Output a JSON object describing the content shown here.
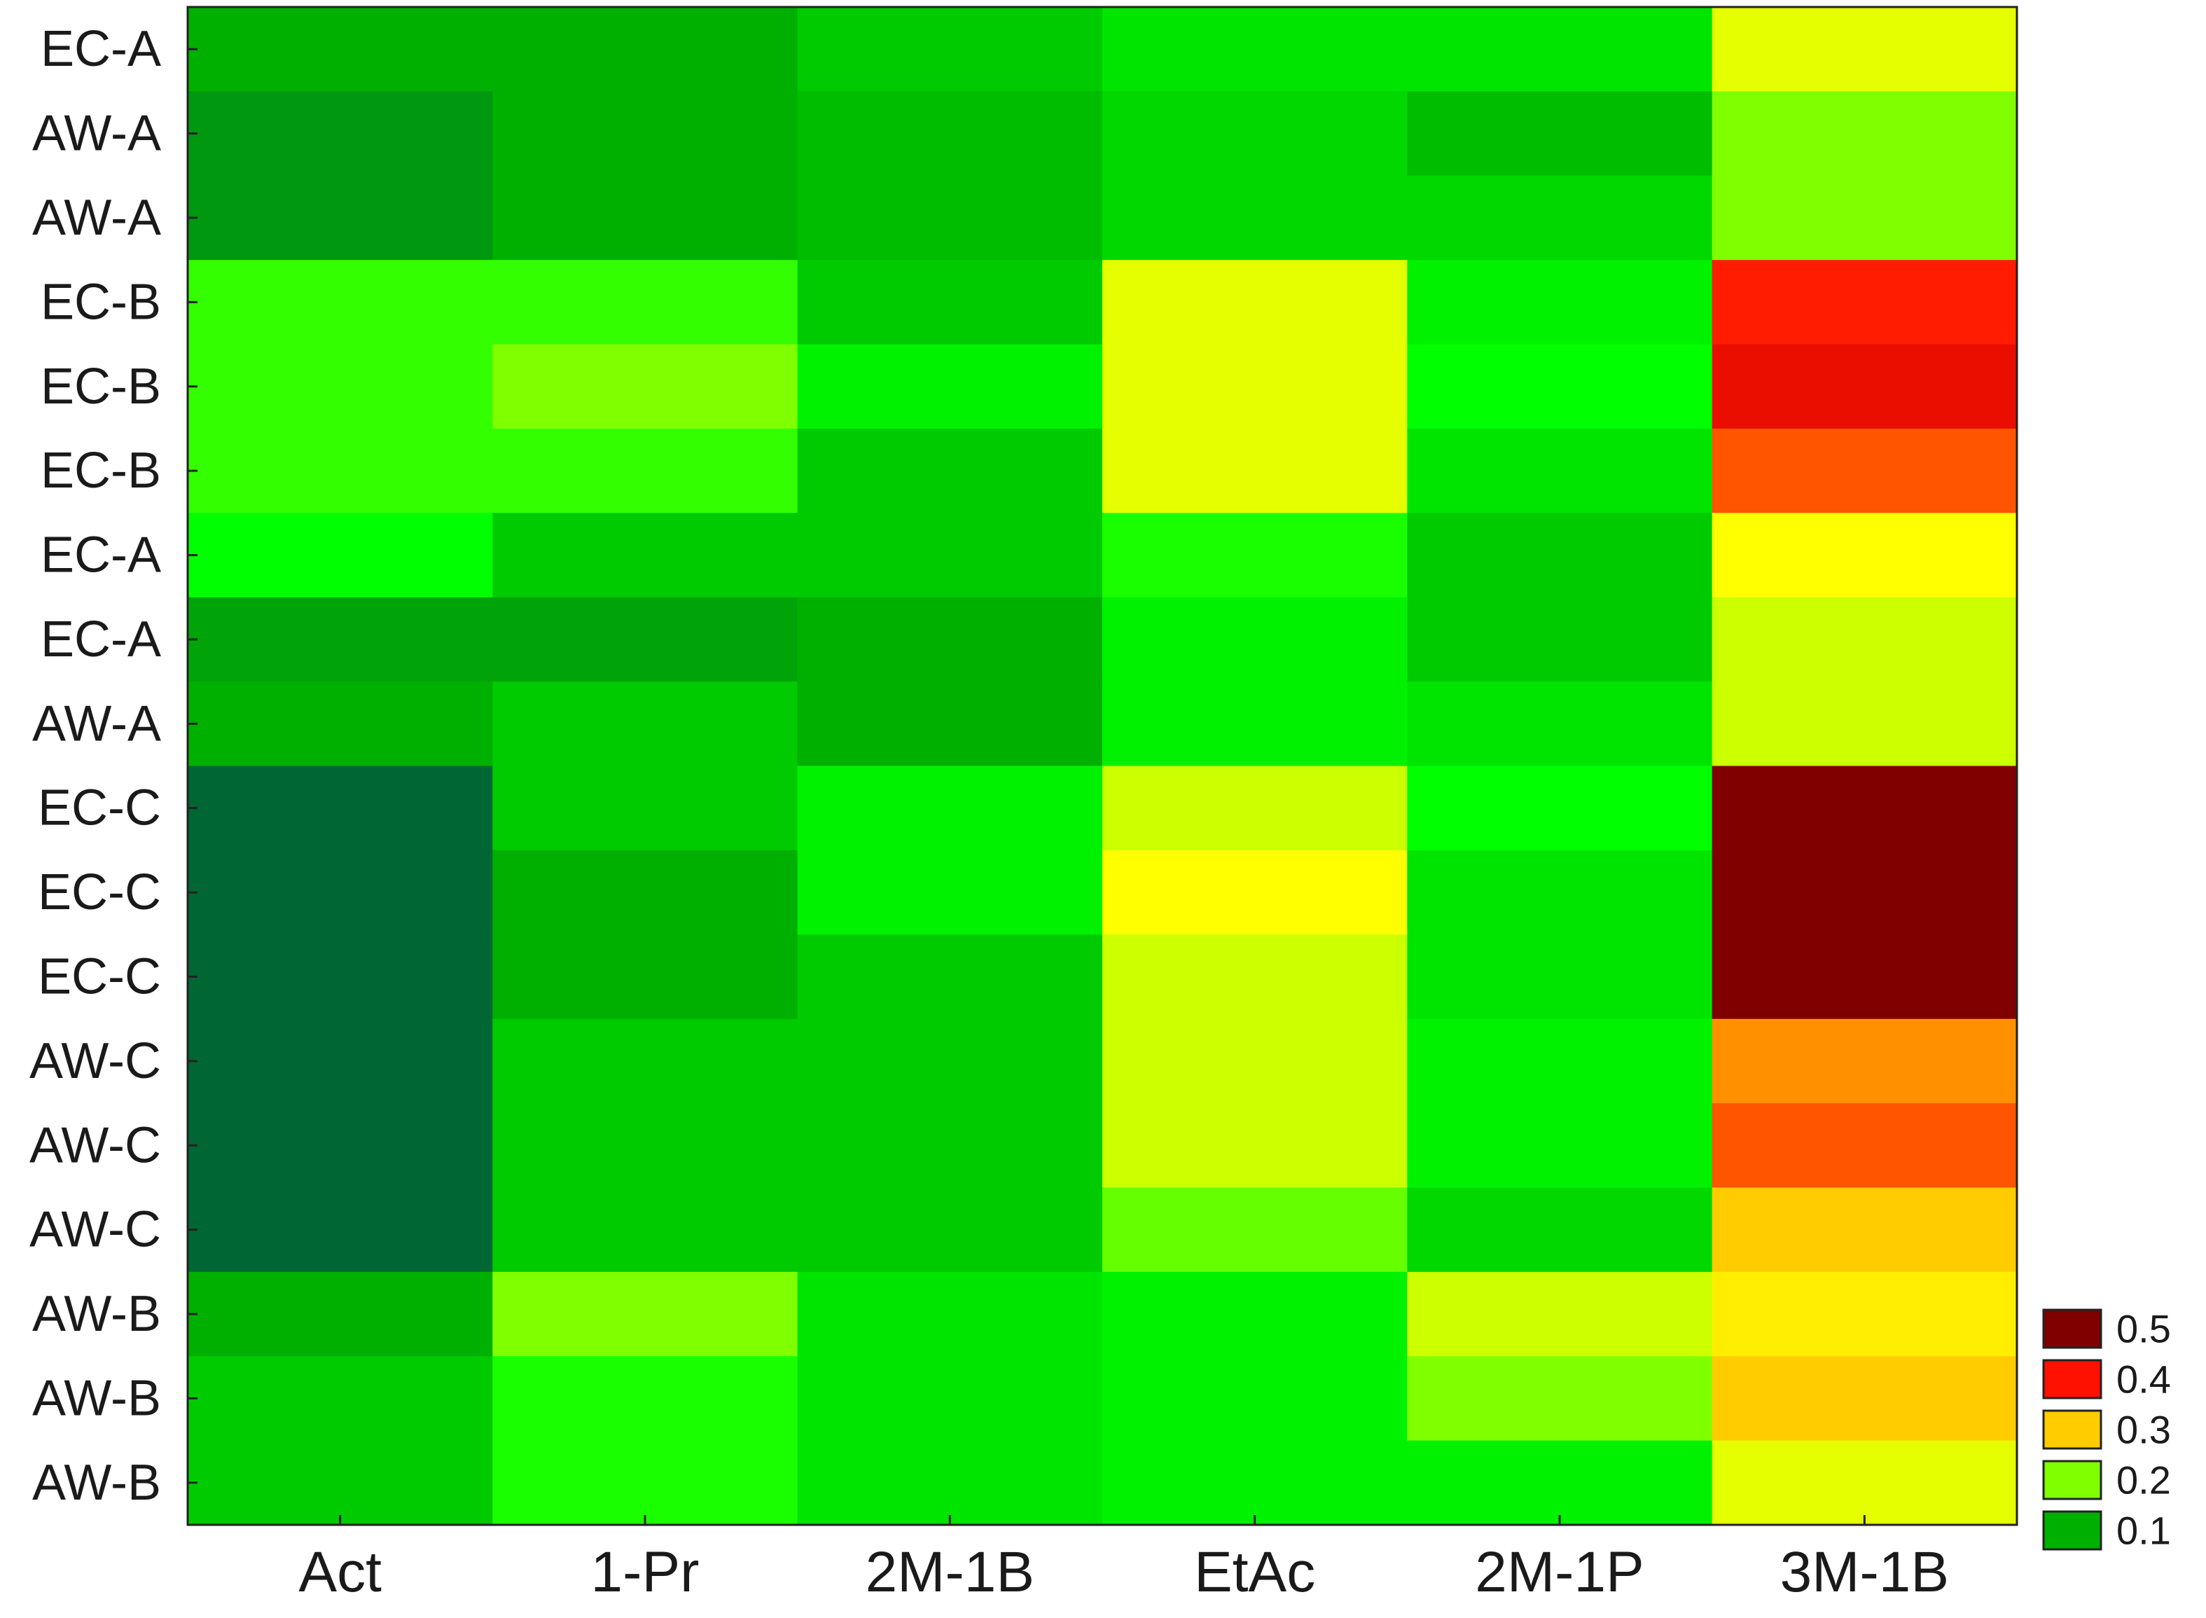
{
  "chart_data": {
    "type": "heatmap",
    "title": "",
    "xlabel": "",
    "ylabel": "",
    "columns": [
      "Act",
      "1-Pr",
      "2M-1B",
      "EtAc",
      "2M-1P",
      "3M-1B"
    ],
    "rows": [
      "EC-A",
      "AW-A",
      "AW-A",
      "EC-B",
      "EC-B",
      "EC-B",
      "EC-A",
      "EC-A",
      "AW-A",
      "EC-C",
      "EC-C",
      "EC-C",
      "AW-C",
      "AW-C",
      "AW-C",
      "AW-B",
      "AW-B",
      "AW-B"
    ],
    "values": [
      [
        0.1,
        0.1,
        0.12,
        0.14,
        0.14,
        0.25
      ],
      [
        0.08,
        0.1,
        0.11,
        0.13,
        0.11,
        0.21
      ],
      [
        0.08,
        0.1,
        0.11,
        0.13,
        0.13,
        0.21
      ],
      [
        0.18,
        0.18,
        0.12,
        0.25,
        0.15,
        0.43
      ],
      [
        0.18,
        0.21,
        0.15,
        0.25,
        0.16,
        0.45
      ],
      [
        0.18,
        0.18,
        0.12,
        0.25,
        0.14,
        0.38
      ],
      [
        0.16,
        0.12,
        0.12,
        0.17,
        0.12,
        0.26
      ],
      [
        0.09,
        0.09,
        0.1,
        0.15,
        0.12,
        0.24
      ],
      [
        0.1,
        0.12,
        0.1,
        0.15,
        0.14,
        0.24
      ],
      [
        0.04,
        0.12,
        0.15,
        0.24,
        0.16,
        0.5
      ],
      [
        0.04,
        0.1,
        0.15,
        0.26,
        0.14,
        0.5
      ],
      [
        0.04,
        0.1,
        0.12,
        0.24,
        0.14,
        0.5
      ],
      [
        0.04,
        0.12,
        0.12,
        0.24,
        0.15,
        0.35
      ],
      [
        0.04,
        0.12,
        0.12,
        0.24,
        0.15,
        0.38
      ],
      [
        0.04,
        0.12,
        0.12,
        0.2,
        0.13,
        0.32
      ],
      [
        0.1,
        0.21,
        0.14,
        0.15,
        0.24,
        0.28
      ],
      [
        0.12,
        0.17,
        0.14,
        0.15,
        0.21,
        0.32
      ],
      [
        0.12,
        0.17,
        0.14,
        0.15,
        0.15,
        0.25
      ]
    ],
    "colorscale": [
      {
        "value": 0.1,
        "color": "#00b000"
      },
      {
        "value": 0.2,
        "color": "#80ff00"
      },
      {
        "value": 0.3,
        "color": "#ffcc00"
      },
      {
        "value": 0.4,
        "color": "#ff1100"
      },
      {
        "value": 0.5,
        "color": "#800000"
      }
    ],
    "colorscale_extremes": {
      "low": "#006633",
      "mid_low": "#00ff00",
      "mid_high": "#ffff00"
    },
    "legend": {
      "position": "right-bottom",
      "entries": [
        {
          "label": "0.5",
          "color": "#800000"
        },
        {
          "label": "0.4",
          "color": "#ff1100"
        },
        {
          "label": "0.3",
          "color": "#ffcc00"
        },
        {
          "label": "0.2",
          "color": "#80ff00"
        },
        {
          "label": "0.1",
          "color": "#00b000"
        }
      ]
    },
    "grid": false
  }
}
